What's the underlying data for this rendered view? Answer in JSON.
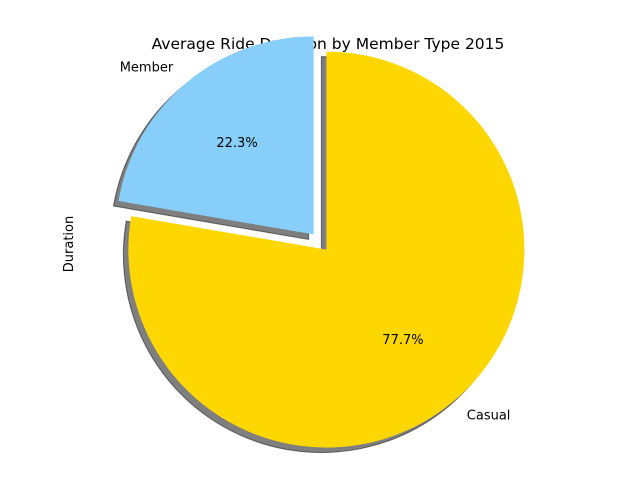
{
  "chart_data": {
    "type": "pie",
    "title": "Average Ride Duration by Member Type 2015",
    "ylabel": "Duration",
    "xlabel": "",
    "slices": [
      {
        "label": "Member",
        "percent": 22.3,
        "percent_label": "22.3%",
        "color": "#87CEFA",
        "exploded": true
      },
      {
        "label": "Casual",
        "percent": 77.7,
        "percent_label": "77.7%",
        "color": "#FFD700",
        "exploded": true
      }
    ],
    "shadow": true,
    "legend": false,
    "grid": false
  }
}
